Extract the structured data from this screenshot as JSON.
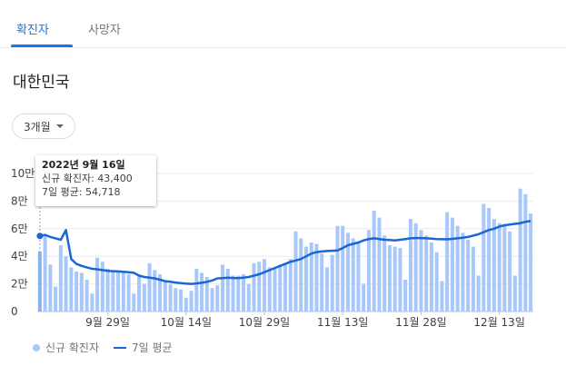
{
  "tabs": [
    {
      "label": "확진자",
      "active": true
    },
    {
      "label": "사망자",
      "active": false
    }
  ],
  "region": "대한민국",
  "range_selector": {
    "label": "3개월"
  },
  "tooltip": {
    "date": "2022년 9월 16일",
    "cases_line": "신규 확진자: 43,400",
    "avg_line": "7일 평균: 54,718"
  },
  "legend": {
    "bars_label": "신규 확진자",
    "line_label": "7일 평균"
  },
  "colors": {
    "accent": "#1a73e8",
    "bar": "#a8c7fa",
    "line": "#1967d2"
  },
  "chart_data": {
    "type": "bar",
    "y_ticks": [
      "0",
      "2만",
      "4만",
      "6만",
      "8만",
      "10만"
    ],
    "ylim": [
      0,
      100000
    ],
    "x_tick_labels": [
      {
        "label": "9월 29일",
        "index": 13
      },
      {
        "label": "10월 14일",
        "index": 28
      },
      {
        "label": "10월 29일",
        "index": 43
      },
      {
        "label": "11월 13일",
        "index": 58
      },
      {
        "label": "11월 28일",
        "index": 73
      },
      {
        "label": "12월 13일",
        "index": 88
      }
    ],
    "highlight_index": 0,
    "start_date": "2022-09-16",
    "series": [
      {
        "name": "신규 확진자",
        "type": "bar",
        "values": [
          43400,
          55000,
          34000,
          18000,
          48000,
          40000,
          32000,
          29000,
          28000,
          23000,
          13000,
          39000,
          36000,
          31000,
          30000,
          29000,
          28000,
          27000,
          13000,
          26000,
          20000,
          35000,
          30000,
          27000,
          22000,
          20000,
          17000,
          16000,
          10000,
          15000,
          31000,
          28000,
          25000,
          17000,
          19000,
          34000,
          31000,
          26000,
          26000,
          27000,
          20000,
          35000,
          36000,
          38000,
          32000,
          32000,
          34000,
          35000,
          38000,
          58000,
          53000,
          47000,
          50000,
          49000,
          42000,
          32000,
          41000,
          62000,
          62000,
          57000,
          53000,
          50000,
          20000,
          59000,
          73000,
          68000,
          55000,
          48000,
          47000,
          46000,
          23000,
          67000,
          64000,
          59000,
          55000,
          50000,
          43000,
          22000,
          72000,
          68000,
          62000,
          57000,
          52000,
          47000,
          26000,
          78000,
          75000,
          67000,
          64000,
          62000,
          58000,
          26000,
          89000,
          85000,
          71000
        ],
        "x": null
      },
      {
        "name": "7일 평균",
        "type": "line",
        "values": [
          54718,
          55500,
          54000,
          53000,
          52000,
          59000,
          38000,
          34500,
          33000,
          32000,
          31000,
          30500,
          30000,
          29500,
          29200,
          29000,
          28800,
          28500,
          28000,
          26000,
          25000,
          24500,
          24000,
          23000,
          22000,
          21500,
          21000,
          20500,
          20200,
          20000,
          20300,
          20800,
          21500,
          22500,
          24000,
          24200,
          24500,
          24300,
          24200,
          24500,
          25000,
          26000,
          27000,
          28500,
          30000,
          31500,
          33000,
          34500,
          36000,
          37000,
          38000,
          40000,
          42000,
          43000,
          43500,
          43800,
          44000,
          44200,
          46000,
          48000,
          49000,
          50000,
          51500,
          52500,
          53000,
          52500,
          52000,
          51800,
          51500,
          52000,
          52500,
          53000,
          53200,
          53200,
          53000,
          52800,
          52500,
          52400,
          52300,
          52600,
          53000,
          53500,
          54000,
          55000,
          56000,
          57500,
          59000,
          60000,
          61500,
          62500,
          63000,
          63500,
          64000,
          65000,
          65500
        ]
      }
    ]
  }
}
